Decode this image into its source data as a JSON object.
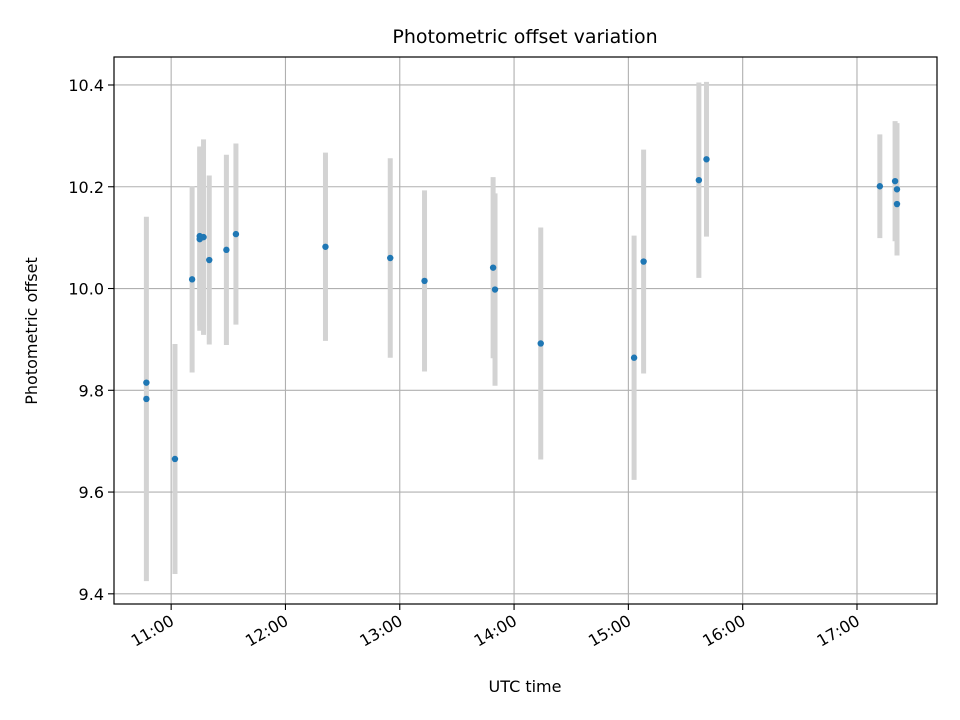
{
  "chart_data": {
    "type": "scatter",
    "title": "Photometric offset variation",
    "xlabel": "UTC time",
    "ylabel": "Photometric offset",
    "x_unit": "UTC time (hours of day)",
    "xlim": [
      "10:30",
      "17:42"
    ],
    "ylim": [
      9.38,
      10.455
    ],
    "x_ticks": [
      "11:00",
      "12:00",
      "13:00",
      "14:00",
      "15:00",
      "16:00",
      "17:00"
    ],
    "y_ticks": [
      "9.4",
      "9.6",
      "9.8",
      "10.0",
      "10.2",
      "10.4"
    ],
    "grid": true,
    "legend": "none",
    "colors": {
      "point": "#1f77b4",
      "errorbar": "#d3d3d3",
      "grid": "#b0b0b0"
    },
    "points": [
      {
        "t": "10:47",
        "y": 9.815,
        "err": 0.0
      },
      {
        "t": "10:47",
        "y": 9.783,
        "err": 0.358
      },
      {
        "t": "11:02",
        "y": 9.665,
        "err": 0.226
      },
      {
        "t": "11:11",
        "y": 10.018,
        "err": 0.183
      },
      {
        "t": "11:15",
        "y": 10.103,
        "err": 0.176
      },
      {
        "t": "11:15",
        "y": 10.097,
        "err": 0.18
      },
      {
        "t": "11:17",
        "y": 10.101,
        "err": 0.192
      },
      {
        "t": "11:20",
        "y": 10.056,
        "err": 0.166
      },
      {
        "t": "11:29",
        "y": 10.076,
        "err": 0.187
      },
      {
        "t": "11:34",
        "y": 10.107,
        "err": 0.178
      },
      {
        "t": "12:21",
        "y": 10.082,
        "err": 0.185
      },
      {
        "t": "12:55",
        "y": 10.06,
        "err": 0.196
      },
      {
        "t": "13:13",
        "y": 10.015,
        "err": 0.178
      },
      {
        "t": "13:49",
        "y": 10.041,
        "err": 0.178
      },
      {
        "t": "13:50",
        "y": 9.998,
        "err": 0.189
      },
      {
        "t": "14:14",
        "y": 9.892,
        "err": 0.228
      },
      {
        "t": "15:03",
        "y": 9.864,
        "err": 0.24
      },
      {
        "t": "15:08",
        "y": 10.053,
        "err": 0.22
      },
      {
        "t": "15:37",
        "y": 10.213,
        "err": 0.192
      },
      {
        "t": "15:41",
        "y": 10.254,
        "err": 0.152
      },
      {
        "t": "17:12",
        "y": 10.201,
        "err": 0.102
      },
      {
        "t": "17:20",
        "y": 10.211,
        "err": 0.118
      },
      {
        "t": "17:21",
        "y": 10.195,
        "err": 0.13
      },
      {
        "t": "17:21",
        "y": 10.166,
        "err": 0.1
      }
    ]
  }
}
